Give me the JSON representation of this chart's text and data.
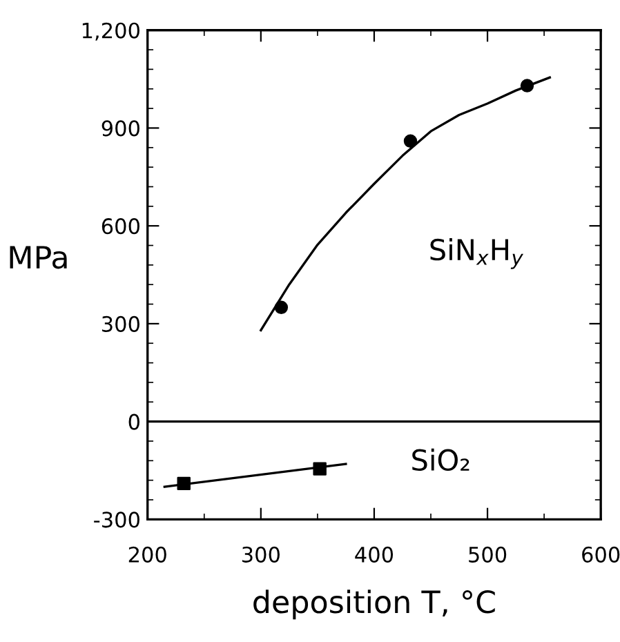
{
  "chart_data": {
    "type": "line",
    "xlabel": "deposition T, °C",
    "ylabel": "MPa",
    "xlim": [
      200,
      600
    ],
    "xticks": [
      200,
      300,
      400,
      500,
      600
    ],
    "ylim": [
      -300,
      1200
    ],
    "yticks": [
      -300,
      0,
      300,
      600,
      900,
      {
        "value": 1200,
        "label": "1,200"
      }
    ],
    "ref_lines": [
      {
        "axis": "y",
        "value": 0,
        "color": "#000000"
      }
    ],
    "grid": false,
    "legend": false,
    "series": [
      {
        "type": "scatter",
        "marker": "circle",
        "color": "#000000",
        "x": [
          318,
          432,
          535
        ],
        "values": [
          350,
          860,
          1030
        ]
      },
      {
        "name": "SiN$_{x}$H$_{y}$",
        "color": "#000000",
        "line_style": "solid",
        "x": [
          300,
          325,
          350,
          375,
          400,
          425,
          450,
          475,
          500,
          525,
          555
        ],
        "values": [
          280,
          420,
          542,
          640,
          729,
          815,
          890,
          940,
          975,
          1015,
          1055
        ]
      },
      {
        "type": "scatter",
        "marker": "square",
        "color": "#000000",
        "x": [
          232,
          352
        ],
        "values": [
          -190,
          -145
        ]
      },
      {
        "name": "SiO₂",
        "color": "#000000",
        "line_style": "solid",
        "x": [
          215,
          375
        ],
        "values": [
          -200,
          -130
        ]
      }
    ]
  }
}
